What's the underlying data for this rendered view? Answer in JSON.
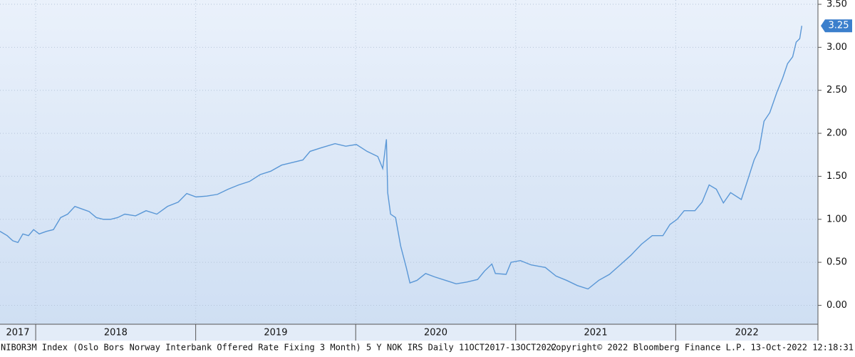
{
  "chart_data": {
    "type": "line",
    "color": "#5a97d6",
    "x": [
      2017.777,
      2017.822,
      2017.857,
      2017.889,
      2017.92,
      2017.955,
      2017.987,
      2018.022,
      2018.067,
      2018.111,
      2018.156,
      2018.2,
      2018.245,
      2018.29,
      2018.334,
      2018.379,
      2018.423,
      2018.468,
      2018.512,
      2018.557,
      2018.624,
      2018.69,
      2018.757,
      2018.824,
      2018.891,
      2018.944,
      2019.002,
      2019.069,
      2019.136,
      2019.203,
      2019.269,
      2019.336,
      2019.403,
      2019.47,
      2019.537,
      2019.604,
      2019.67,
      2019.715,
      2019.782,
      2019.871,
      2019.938,
      2020.004,
      2020.071,
      2020.138,
      2020.169,
      2020.192,
      2020.2,
      2020.218,
      2020.249,
      2020.281,
      2020.316,
      2020.339,
      2020.383,
      2020.437,
      2020.494,
      2020.561,
      2020.628,
      2020.695,
      2020.762,
      2020.806,
      2020.851,
      2020.873,
      2020.94,
      2020.971,
      2021.029,
      2021.096,
      2021.185,
      2021.252,
      2021.318,
      2021.385,
      2021.452,
      2021.519,
      2021.586,
      2021.653,
      2021.719,
      2021.786,
      2021.853,
      2021.92,
      2021.964,
      2022.009,
      2022.053,
      2022.12,
      2022.165,
      2022.209,
      2022.254,
      2022.298,
      2022.343,
      2022.41,
      2022.454,
      2022.49,
      2022.521,
      2022.552,
      2022.588,
      2022.633,
      2022.668,
      2022.699,
      2022.731,
      2022.753,
      2022.775,
      2022.788
    ],
    "values": [
      0.86,
      0.81,
      0.75,
      0.73,
      0.83,
      0.81,
      0.88,
      0.83,
      0.86,
      0.88,
      1.02,
      1.06,
      1.15,
      1.12,
      1.09,
      1.02,
      1.0,
      1.0,
      1.02,
      1.06,
      1.04,
      1.1,
      1.06,
      1.15,
      1.2,
      1.3,
      1.26,
      1.27,
      1.29,
      1.35,
      1.4,
      1.44,
      1.52,
      1.56,
      1.63,
      1.66,
      1.69,
      1.79,
      1.83,
      1.88,
      1.85,
      1.87,
      1.79,
      1.73,
      1.59,
      1.93,
      1.31,
      1.06,
      1.02,
      0.69,
      0.44,
      0.26,
      0.29,
      0.37,
      0.33,
      0.29,
      0.25,
      0.27,
      0.3,
      0.4,
      0.48,
      0.37,
      0.36,
      0.5,
      0.52,
      0.47,
      0.44,
      0.34,
      0.29,
      0.23,
      0.19,
      0.29,
      0.36,
      0.47,
      0.58,
      0.71,
      0.81,
      0.81,
      0.94,
      1.0,
      1.1,
      1.1,
      1.2,
      1.4,
      1.35,
      1.19,
      1.31,
      1.23,
      1.48,
      1.69,
      1.81,
      2.14,
      2.24,
      2.48,
      2.64,
      2.81,
      2.89,
      3.06,
      3.1,
      3.25
    ],
    "xlim": [
      2017.777,
      2022.889
    ],
    "xticks": [
      2018,
      2019,
      2020,
      2021,
      2022
    ],
    "year_labels": [
      2017,
      2018,
      2019,
      2020,
      2021,
      2022
    ],
    "ylim": [
      -0.22,
      3.55
    ],
    "yticks": [
      {
        "value": 0,
        "label": "0.00"
      },
      {
        "value": 0.5,
        "label": "0.50"
      },
      {
        "value": 1,
        "label": "1.00"
      },
      {
        "value": 1.5,
        "label": "1.50"
      },
      {
        "value": 2,
        "label": "2.00"
      },
      {
        "value": 2.5,
        "label": "2.50"
      },
      {
        "value": 3,
        "label": "3.00"
      },
      {
        "value": 3.5,
        "label": "3.50"
      }
    ],
    "grid": true,
    "footer": {
      "source": "NIBOR3M Index (Oslo Bors Norway Interbank Offered Rate Fixing 3 Month) 5 Y NOK IRS  Daily 11OCT2017-13OCT2022",
      "copyright": "Copyright© 2022 Bloomberg Finance L.P.",
      "timestamp": "13-Oct-2022 12:18:31"
    }
  }
}
